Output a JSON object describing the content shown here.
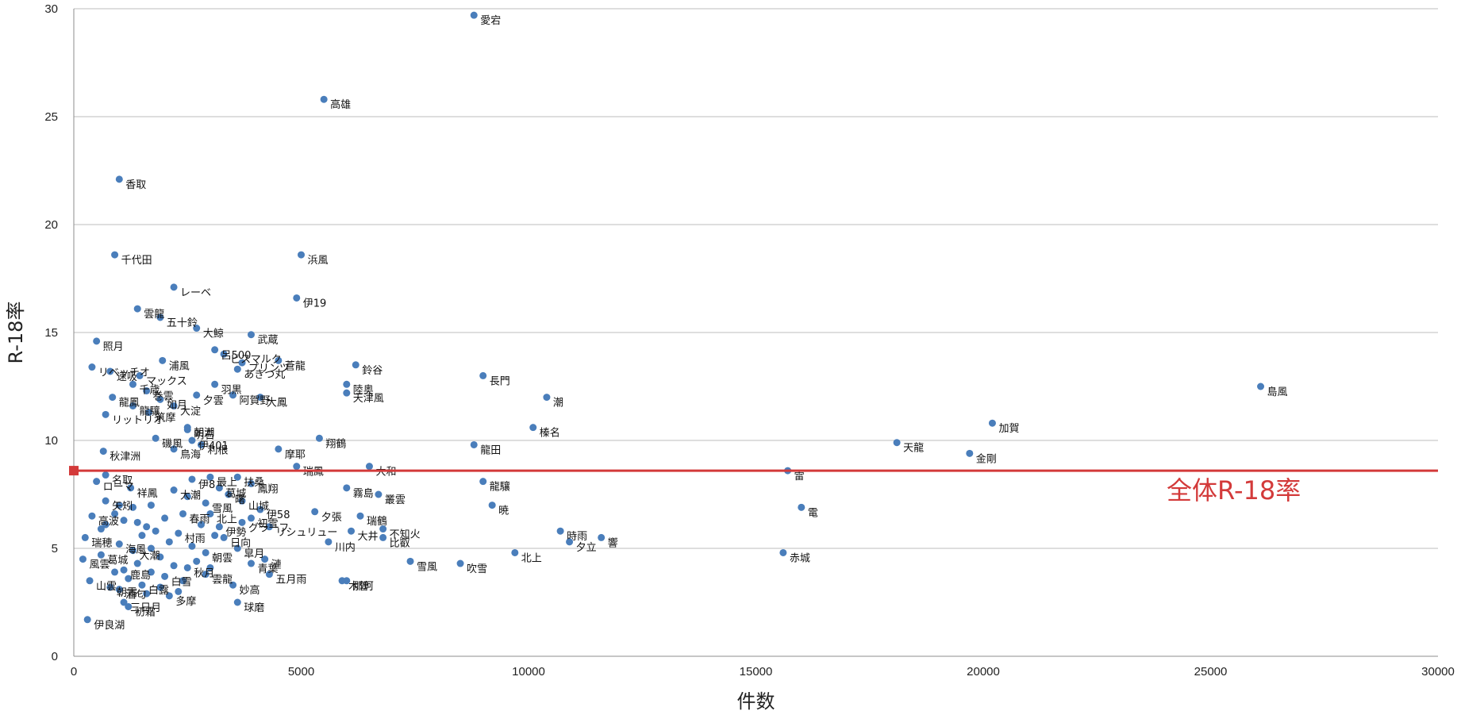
{
  "chart_data": {
    "type": "scatter",
    "xlabel": "件数",
    "ylabel": "R-18率",
    "xlim": [
      0,
      30000
    ],
    "ylim": [
      0,
      30
    ],
    "xticks": [
      0,
      5000,
      10000,
      15000,
      20000,
      25000,
      30000
    ],
    "yticks": [
      0,
      5,
      10,
      15,
      20,
      25,
      30
    ],
    "grid": "horizontal",
    "series": [
      {
        "points": [
          {
            "x": 8800,
            "y": 29.7,
            "label": "愛宕"
          },
          {
            "x": 5500,
            "y": 25.8,
            "label": "高雄"
          },
          {
            "x": 1000,
            "y": 22.1,
            "label": "香取"
          },
          {
            "x": 900,
            "y": 18.6,
            "label": "千代田"
          },
          {
            "x": 5000,
            "y": 18.6,
            "label": "浜風"
          },
          {
            "x": 2200,
            "y": 17.1,
            "label": "レーベ"
          },
          {
            "x": 4900,
            "y": 16.6,
            "label": "伊19"
          },
          {
            "x": 1400,
            "y": 16.1,
            "label": "雲龍"
          },
          {
            "x": 1900,
            "y": 15.7,
            "label": "五十鈴"
          },
          {
            "x": 2700,
            "y": 15.2,
            "label": "大鯨"
          },
          {
            "x": 3900,
            "y": 14.9,
            "label": "武蔵"
          },
          {
            "x": 500,
            "y": 14.6,
            "label": "照月"
          },
          {
            "x": 3100,
            "y": 14.2,
            "label": "呂500"
          },
          {
            "x": 3300,
            "y": 14.0,
            "label": "ビスマルク"
          },
          {
            "x": 1950,
            "y": 13.7,
            "label": "浦風"
          },
          {
            "x": 3700,
            "y": 13.6,
            "label": "プリンツ"
          },
          {
            "x": 4500,
            "y": 13.7,
            "label": "蒼龍"
          },
          {
            "x": 6200,
            "y": 13.5,
            "label": "鈴谷"
          },
          {
            "x": 400,
            "y": 13.4,
            "label": "リベッチオ"
          },
          {
            "x": 3600,
            "y": 13.3,
            "label": "あきつ丸"
          },
          {
            "x": 800,
            "y": 13.2,
            "label": "速吸"
          },
          {
            "x": 1450,
            "y": 13.0,
            "label": "マックス"
          },
          {
            "x": 9000,
            "y": 13.0,
            "label": "長門"
          },
          {
            "x": 1300,
            "y": 12.6,
            "label": "千歳"
          },
          {
            "x": 3100,
            "y": 12.6,
            "label": "羽黒"
          },
          {
            "x": 6000,
            "y": 12.6,
            "label": "陸奥"
          },
          {
            "x": 1600,
            "y": 12.3,
            "label": "巻雲"
          },
          {
            "x": 6000,
            "y": 12.2,
            "label": "天津風"
          },
          {
            "x": 2700,
            "y": 12.1,
            "label": "夕雲"
          },
          {
            "x": 3500,
            "y": 12.1,
            "label": "阿賀野"
          },
          {
            "x": 4100,
            "y": 12.0,
            "label": "大鳳"
          },
          {
            "x": 850,
            "y": 12.0,
            "label": "龍鳳"
          },
          {
            "x": 1900,
            "y": 11.9,
            "label": "如月"
          },
          {
            "x": 10400,
            "y": 12.0,
            "label": "潮"
          },
          {
            "x": 1300,
            "y": 11.6,
            "label": "龍驤"
          },
          {
            "x": 2200,
            "y": 11.6,
            "label": "大淀"
          },
          {
            "x": 1650,
            "y": 11.3,
            "label": "筑摩"
          },
          {
            "x": 700,
            "y": 11.2,
            "label": "リットリオ"
          },
          {
            "x": 2500,
            "y": 10.6,
            "label": "朝潮"
          },
          {
            "x": 10100,
            "y": 10.6,
            "label": "榛名"
          },
          {
            "x": 2500,
            "y": 10.5,
            "label": "明石"
          },
          {
            "x": 26100,
            "y": 12.5,
            "label": "島風"
          },
          {
            "x": 20200,
            "y": 10.8,
            "label": "加賀"
          },
          {
            "x": 1800,
            "y": 10.1,
            "label": "磯風"
          },
          {
            "x": 2600,
            "y": 10.0,
            "label": "伊401"
          },
          {
            "x": 5400,
            "y": 10.1,
            "label": "翔鶴"
          },
          {
            "x": 2800,
            "y": 9.8,
            "label": "利根"
          },
          {
            "x": 8800,
            "y": 9.8,
            "label": "龍田"
          },
          {
            "x": 18100,
            "y": 9.9,
            "label": "天龍"
          },
          {
            "x": 2200,
            "y": 9.6,
            "label": "鳥海"
          },
          {
            "x": 4500,
            "y": 9.6,
            "label": "摩耶"
          },
          {
            "x": 650,
            "y": 9.5,
            "label": "秋津洲"
          },
          {
            "x": 19700,
            "y": 9.4,
            "label": "金剛"
          },
          {
            "x": 4900,
            "y": 8.8,
            "label": "瑞鳳"
          },
          {
            "x": 6500,
            "y": 8.8,
            "label": "大和"
          },
          {
            "x": 15700,
            "y": 8.6,
            "label": "雷"
          },
          {
            "x": 700,
            "y": 8.4,
            "label": "名取"
          },
          {
            "x": 2600,
            "y": 8.2,
            "label": "伊8"
          },
          {
            "x": 3600,
            "y": 8.3,
            "label": "扶桑"
          },
          {
            "x": 3000,
            "y": 8.3,
            "label": "最上"
          },
          {
            "x": 500,
            "y": 8.1,
            "label": "ローマ"
          },
          {
            "x": 3900,
            "y": 8.0,
            "label": "鳳翔"
          },
          {
            "x": 9000,
            "y": 8.1,
            "label": "龍驤"
          },
          {
            "x": 1250,
            "y": 7.8,
            "label": "祥鳳"
          },
          {
            "x": 2200,
            "y": 7.7,
            "label": "大潮"
          },
          {
            "x": 3200,
            "y": 7.8,
            "label": "葛城"
          },
          {
            "x": 6000,
            "y": 7.8,
            "label": "霧島"
          },
          {
            "x": 6700,
            "y": 7.5,
            "label": "叢雲"
          },
          {
            "x": 3400,
            "y": 7.5,
            "label": "曙"
          },
          {
            "x": 700,
            "y": 7.2,
            "label": "矢矧"
          },
          {
            "x": 3700,
            "y": 7.2,
            "label": "山城"
          },
          {
            "x": 2900,
            "y": 7.1,
            "label": "雪風"
          },
          {
            "x": 9200,
            "y": 7.0,
            "label": "暁"
          },
          {
            "x": 16000,
            "y": 6.9,
            "label": "電"
          },
          {
            "x": 4100,
            "y": 6.8,
            "label": "伊58"
          },
          {
            "x": 5300,
            "y": 6.7,
            "label": "夕張"
          },
          {
            "x": 2400,
            "y": 6.6,
            "label": "春雨"
          },
          {
            "x": 3000,
            "y": 6.6,
            "label": "北上"
          },
          {
            "x": 400,
            "y": 6.5,
            "label": "高波"
          },
          {
            "x": 3900,
            "y": 6.4,
            "label": "初雪"
          },
          {
            "x": 6300,
            "y": 6.5,
            "label": "瑞鶴"
          },
          {
            "x": 3700,
            "y": 6.2,
            "label": "グラーフ"
          },
          {
            "x": 3200,
            "y": 6.0,
            "label": "伊勢"
          },
          {
            "x": 4300,
            "y": 6.0,
            "label": "リシュリュー"
          },
          {
            "x": 6800,
            "y": 5.9,
            "label": "不知火"
          },
          {
            "x": 2300,
            "y": 5.7,
            "label": "村雨"
          },
          {
            "x": 6100,
            "y": 5.8,
            "label": "大井"
          },
          {
            "x": 10700,
            "y": 5.8,
            "label": "時雨"
          },
          {
            "x": 3300,
            "y": 5.5,
            "label": "日向"
          },
          {
            "x": 250,
            "y": 5.5,
            "label": "瑞穂"
          },
          {
            "x": 6800,
            "y": 5.5,
            "label": "比叡"
          },
          {
            "x": 11600,
            "y": 5.5,
            "label": "響"
          },
          {
            "x": 5600,
            "y": 5.3,
            "label": "川内"
          },
          {
            "x": 1000,
            "y": 5.2,
            "label": "海風"
          },
          {
            "x": 1300,
            "y": 4.9,
            "label": "大潮"
          },
          {
            "x": 3600,
            "y": 5.0,
            "label": "皐月"
          },
          {
            "x": 10900,
            "y": 5.3,
            "label": "夕立"
          },
          {
            "x": 2900,
            "y": 4.8,
            "label": "朝雲"
          },
          {
            "x": 9700,
            "y": 4.8,
            "label": "北上"
          },
          {
            "x": 15600,
            "y": 4.8,
            "label": "赤城"
          },
          {
            "x": 600,
            "y": 4.7,
            "label": "葛城"
          },
          {
            "x": 4200,
            "y": 4.5,
            "label": "漣"
          },
          {
            "x": 200,
            "y": 4.5,
            "label": "風雲"
          },
          {
            "x": 7400,
            "y": 4.4,
            "label": "雪風"
          },
          {
            "x": 8500,
            "y": 4.3,
            "label": "吹雪"
          },
          {
            "x": 3900,
            "y": 4.3,
            "label": "青葉"
          },
          {
            "x": 1100,
            "y": 4.0,
            "label": "鹿島"
          },
          {
            "x": 2500,
            "y": 4.1,
            "label": "秋月"
          },
          {
            "x": 4300,
            "y": 3.8,
            "label": "五月雨"
          },
          {
            "x": 2000,
            "y": 3.7,
            "label": "白雪"
          },
          {
            "x": 2900,
            "y": 3.8,
            "label": "雲龍"
          },
          {
            "x": 5900,
            "y": 3.5,
            "label": "木曽"
          },
          {
            "x": 6000,
            "y": 3.5,
            "label": "那珂"
          },
          {
            "x": 3500,
            "y": 3.3,
            "label": "妙高"
          },
          {
            "x": 350,
            "y": 3.5,
            "label": "山雲"
          },
          {
            "x": 1500,
            "y": 3.3,
            "label": "白露"
          },
          {
            "x": 1000,
            "y": 3.1,
            "label": "酒匂"
          },
          {
            "x": 800,
            "y": 3.2,
            "label": "朝霜"
          },
          {
            "x": 2100,
            "y": 2.8,
            "label": "多摩"
          },
          {
            "x": 1100,
            "y": 2.5,
            "label": "三日月"
          },
          {
            "x": 3600,
            "y": 2.5,
            "label": "球磨"
          },
          {
            "x": 1200,
            "y": 2.3,
            "label": "初霜"
          },
          {
            "x": 300,
            "y": 1.7,
            "label": "伊良湖"
          },
          {
            "x": 700,
            "y": 6.1,
            "label": ""
          },
          {
            "x": 900,
            "y": 6.6,
            "label": ""
          },
          {
            "x": 1100,
            "y": 6.3,
            "label": ""
          },
          {
            "x": 1400,
            "y": 6.2,
            "label": ""
          },
          {
            "x": 1600,
            "y": 6.0,
            "label": ""
          },
          {
            "x": 1800,
            "y": 5.8,
            "label": ""
          },
          {
            "x": 2000,
            "y": 6.4,
            "label": ""
          },
          {
            "x": 1500,
            "y": 5.6,
            "label": ""
          },
          {
            "x": 2100,
            "y": 5.3,
            "label": ""
          },
          {
            "x": 1700,
            "y": 5.0,
            "label": ""
          },
          {
            "x": 2600,
            "y": 5.1,
            "label": ""
          },
          {
            "x": 1900,
            "y": 4.6,
            "label": ""
          },
          {
            "x": 1400,
            "y": 4.3,
            "label": ""
          },
          {
            "x": 2200,
            "y": 4.2,
            "label": ""
          },
          {
            "x": 2700,
            "y": 4.4,
            "label": ""
          },
          {
            "x": 1700,
            "y": 3.9,
            "label": ""
          },
          {
            "x": 1200,
            "y": 3.6,
            "label": ""
          },
          {
            "x": 2400,
            "y": 3.5,
            "label": ""
          },
          {
            "x": 1900,
            "y": 3.2,
            "label": ""
          },
          {
            "x": 2300,
            "y": 3.0,
            "label": ""
          },
          {
            "x": 1600,
            "y": 2.9,
            "label": ""
          },
          {
            "x": 900,
            "y": 3.9,
            "label": ""
          },
          {
            "x": 3000,
            "y": 4.1,
            "label": ""
          },
          {
            "x": 3100,
            "y": 5.6,
            "label": ""
          },
          {
            "x": 2800,
            "y": 6.1,
            "label": ""
          },
          {
            "x": 2500,
            "y": 7.4,
            "label": ""
          },
          {
            "x": 1700,
            "y": 7.0,
            "label": ""
          },
          {
            "x": 1300,
            "y": 6.9,
            "label": ""
          },
          {
            "x": 1000,
            "y": 7.0,
            "label": ""
          },
          {
            "x": 600,
            "y": 5.9,
            "label": ""
          }
        ]
      }
    ],
    "reference_line": {
      "y": 8.6,
      "label": "全体R-18率",
      "color": "#d33a3a"
    },
    "colors": {
      "point": "#4a7ebb",
      "grid": "#bdbdbd"
    }
  }
}
